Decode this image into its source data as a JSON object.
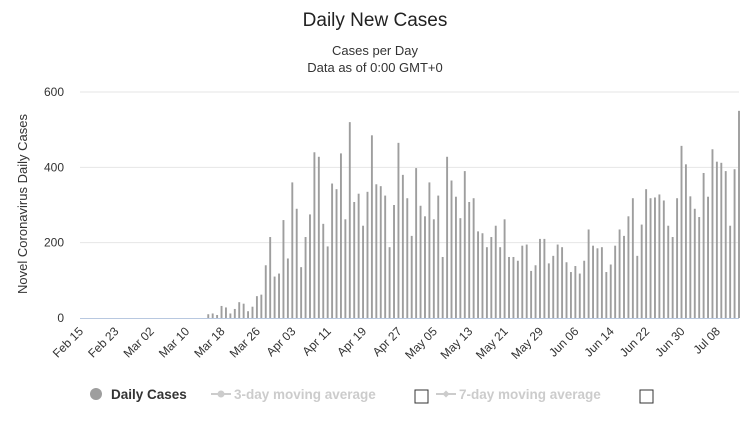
{
  "chart_data": {
    "type": "bar",
    "title": "Daily New Cases",
    "subtitle_lines": [
      "Cases per Day",
      "Data as of 0:00 GMT+0"
    ],
    "ylabel": "Novel Coronavirus Daily Cases",
    "xlabel": "",
    "ylim": [
      0,
      600
    ],
    "yticks": [
      0,
      200,
      400,
      600
    ],
    "grid": true,
    "x_start": "Feb 15",
    "x_tick_labels": [
      "Feb 15",
      "Feb 23",
      "Mar 02",
      "Mar 10",
      "Mar 18",
      "Mar 26",
      "Apr 03",
      "Apr 11",
      "Apr 19",
      "Apr 27",
      "May 05",
      "May 13",
      "May 21",
      "May 29",
      "Jun 06",
      "Jun 14",
      "Jun 22",
      "Jun 30",
      "Jul 08"
    ],
    "series": [
      {
        "name": "Daily Cases",
        "color": "#9e9e9e",
        "values": [
          0,
          0,
          0,
          0,
          0,
          0,
          0,
          0,
          0,
          0,
          0,
          0,
          0,
          0,
          0,
          0,
          0,
          0,
          0,
          0,
          0,
          0,
          0,
          0,
          0,
          0,
          0,
          0,
          0,
          10,
          12,
          8,
          32,
          28,
          12,
          24,
          42,
          38,
          18,
          30,
          58,
          62,
          140,
          215,
          110,
          118,
          260,
          158,
          360,
          290,
          135,
          215,
          275,
          440,
          428,
          250,
          190,
          357,
          342,
          437,
          262,
          520,
          308,
          330,
          245,
          335,
          485,
          355,
          350,
          325,
          188,
          300,
          465,
          380,
          318,
          218,
          398,
          298,
          270,
          360,
          262,
          325,
          162,
          428,
          365,
          322,
          265,
          390,
          308,
          318,
          230,
          225,
          188,
          215,
          245,
          188,
          262,
          162,
          162,
          152,
          192,
          195,
          125,
          140,
          210,
          210,
          145,
          165,
          195,
          188,
          148,
          122,
          138,
          118,
          152,
          235,
          192,
          185,
          188,
          122,
          142,
          192,
          235,
          218,
          270,
          318,
          165,
          248,
          342,
          318,
          320,
          328,
          312,
          245,
          215,
          318,
          457,
          408,
          323,
          290,
          268,
          385,
          322,
          448,
          415,
          412,
          390,
          245,
          395,
          550
        ]
      },
      {
        "name": "3-day moving average",
        "values": []
      },
      {
        "name": "7-day moving average",
        "values": []
      }
    ],
    "legend_position": "bottom",
    "legend_hidden_color": "#cccccc",
    "legend_active_color": "#333333"
  }
}
